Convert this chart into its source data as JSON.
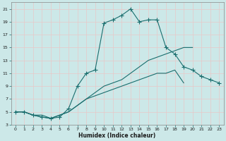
{
  "xlabel": "Humidex (Indice chaleur)",
  "bg_color": "#cce8e8",
  "grid_color": "#e8c8c8",
  "line_color": "#1a6e6e",
  "xlim": [
    -0.5,
    23.5
  ],
  "ylim": [
    3,
    22
  ],
  "xticks": [
    0,
    1,
    2,
    3,
    4,
    5,
    6,
    7,
    8,
    9,
    10,
    11,
    12,
    13,
    14,
    15,
    16,
    17,
    18,
    19,
    20,
    21,
    22,
    23
  ],
  "yticks": [
    3,
    5,
    7,
    9,
    11,
    13,
    15,
    17,
    19,
    21
  ],
  "line1_x": [
    0,
    1,
    2,
    3,
    4,
    5,
    6,
    7,
    8,
    9,
    10,
    11,
    12,
    13,
    14,
    15,
    16,
    17,
    18,
    19,
    20,
    21,
    22,
    23
  ],
  "line1_y": [
    5,
    5,
    4.5,
    4.2,
    4.0,
    4.2,
    5.5,
    9.0,
    11.0,
    11.5,
    18.8,
    19.3,
    20.0,
    21.0,
    19.0,
    19.3,
    19.3,
    15.0,
    14.0,
    12.0,
    11.5,
    10.5,
    10.0,
    9.5
  ],
  "line2_x": [
    0,
    1,
    2,
    3,
    4,
    5,
    6,
    7,
    8,
    9,
    10,
    11,
    12,
    13,
    14,
    15,
    16,
    17,
    18,
    19,
    20,
    21,
    22,
    23
  ],
  "line2_y": [
    5,
    5,
    4.5,
    4.2,
    4.0,
    4.5,
    5.0,
    6.0,
    7.0,
    8.0,
    9.0,
    9.5,
    10.0,
    11.0,
    12.0,
    13.0,
    13.5,
    14.0,
    14.5,
    15.0,
    15.0,
    null,
    null,
    null
  ],
  "line3_x": [
    0,
    1,
    2,
    3,
    4,
    5,
    6,
    7,
    8,
    9,
    10,
    11,
    12,
    13,
    14,
    15,
    16,
    17,
    18,
    19,
    20,
    21,
    22,
    23
  ],
  "line3_y": [
    5,
    5,
    4.5,
    4.5,
    4.0,
    4.5,
    5.0,
    6.0,
    7.0,
    7.5,
    8.0,
    8.5,
    9.0,
    9.5,
    10.0,
    10.5,
    11.0,
    11.0,
    11.5,
    9.5,
    null,
    null,
    null,
    null
  ]
}
